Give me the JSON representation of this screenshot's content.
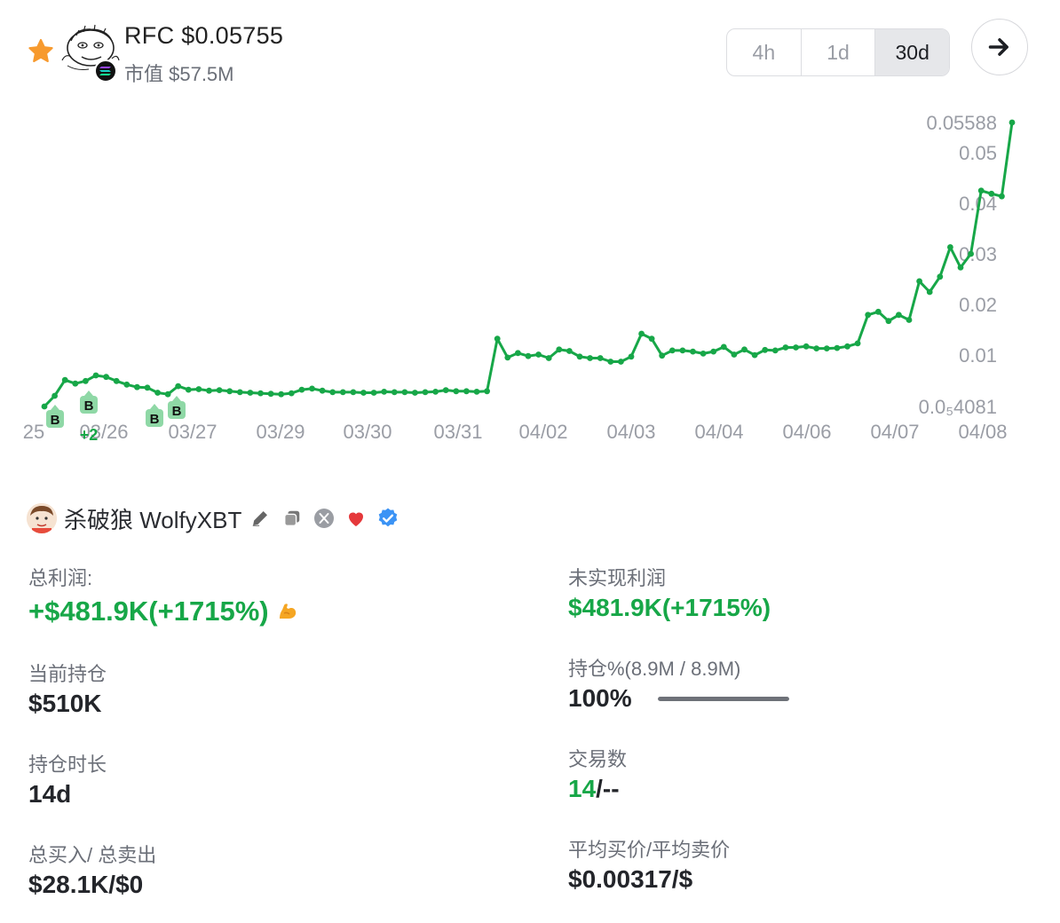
{
  "header": {
    "title": "RFC $0.05755",
    "market_cap": "市值 $57.5M",
    "ranges": [
      "4h",
      "1d",
      "30d"
    ],
    "active_range": "30d",
    "icons": {
      "favorite": "star-icon",
      "chain": "solana-icon",
      "next": "arrow-right-icon"
    },
    "colors": {
      "star": "#f79a2e",
      "accent": "#17a748"
    }
  },
  "chart_data": {
    "type": "line",
    "x_ticks": [
      "25",
      "03/26",
      "03/27",
      "03/29",
      "03/30",
      "03/31",
      "04/02",
      "04/03",
      "04/04",
      "04/06",
      "04/07",
      "04/08"
    ],
    "y_ticks": [
      "0.05588",
      "0.05",
      "0.04",
      "0.03",
      "0.02",
      "0.01",
      "0.0₅4081"
    ],
    "y_range": [
      4.081e-05,
      0.05588
    ],
    "series": [
      {
        "color": "#17a748",
        "values": [
          0.0,
          0.0021,
          0.0052,
          0.0045,
          0.005,
          0.0061,
          0.0058,
          0.005,
          0.0043,
          0.0038,
          0.0037,
          0.0027,
          0.0024,
          0.004,
          0.0033,
          0.0034,
          0.0031,
          0.0032,
          0.003,
          0.0028,
          0.0027,
          0.0026,
          0.0025,
          0.0024,
          0.0026,
          0.0033,
          0.0035,
          0.0031,
          0.0028,
          0.0028,
          0.0028,
          0.0027,
          0.0027,
          0.0029,
          0.0028,
          0.0028,
          0.0027,
          0.0028,
          0.0029,
          0.0032,
          0.003,
          0.003,
          0.0029,
          0.003,
          0.0133,
          0.0096,
          0.0105,
          0.0099,
          0.0102,
          0.0095,
          0.0112,
          0.0109,
          0.0098,
          0.0095,
          0.0095,
          0.0088,
          0.0088,
          0.0098,
          0.0143,
          0.0133,
          0.01,
          0.011,
          0.011,
          0.0108,
          0.0104,
          0.0108,
          0.0117,
          0.0102,
          0.0112,
          0.0101,
          0.0111,
          0.011,
          0.0116,
          0.0116,
          0.0118,
          0.0114,
          0.0114,
          0.0115,
          0.0118,
          0.0124,
          0.018,
          0.0186,
          0.0168,
          0.018,
          0.017,
          0.0246,
          0.0225,
          0.0255,
          0.0313,
          0.0273,
          0.03,
          0.0424,
          0.0418,
          0.0413,
          0.0558
        ]
      }
    ],
    "markers": [
      {
        "label": "B",
        "x_tick": "25"
      },
      {
        "label": "B",
        "x_tick": "03/26"
      },
      {
        "label": "B",
        "x_tick": "03/27"
      },
      {
        "label": "B",
        "x_tick": "03/27"
      }
    ],
    "marker_annotation": "+2",
    "grid": false
  },
  "profile": {
    "name": "杀破狼 WolfyXBT",
    "icons": [
      "edit-icon",
      "copy-icon",
      "x-twitter-icon",
      "heart-icon",
      "verified-badge-icon"
    ]
  },
  "stats": {
    "total_profit_label": "总利润:",
    "total_profit_value": "+$481.9K(+1715%)",
    "total_profit_icon": "flexed-biceps-icon",
    "unrealized_label": "未实现利润",
    "unrealized_value": "$481.9K(+1715%)",
    "position_label": "当前持仓",
    "position_value": "$510K",
    "holding_pct_label": "持仓%(8.9M / 8.9M)",
    "holding_pct_value": "100%",
    "holding_fraction": 1.0,
    "duration_label": "持仓时长",
    "duration_value": "14d",
    "trades_label": "交易数",
    "trades_buy": "14",
    "trades_sell": "/--",
    "buy_sell_label": "总买入/ 总卖出",
    "buy_sell_value": "$28.1K/$0",
    "avg_price_label": "平均买价/平均卖价",
    "avg_price_value": "$0.00317/$"
  }
}
